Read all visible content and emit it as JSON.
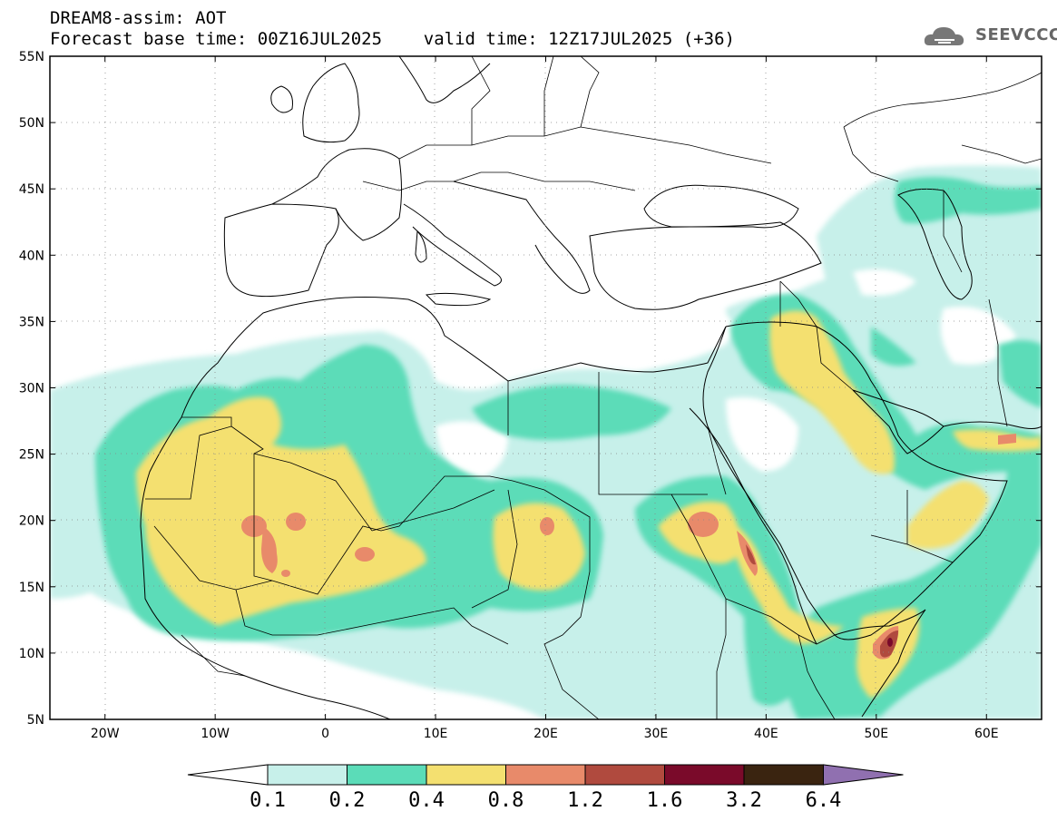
{
  "header": {
    "line1": "DREAM8-assim: AOT",
    "line2": "Forecast base time: 00Z16JUL2025    valid time: 12Z17JUL2025 (+36)"
  },
  "logo": {
    "text": "SEEVCCC",
    "icon": "cloud-icon"
  },
  "map": {
    "lon_range": [
      -25,
      65
    ],
    "lat_range": [
      5,
      55
    ],
    "lat_ticks": [
      "55N",
      "50N",
      "45N",
      "40N",
      "35N",
      "30N",
      "25N",
      "20N",
      "15N",
      "10N",
      "5N"
    ],
    "lon_ticks": [
      "20W",
      "10W",
      "0",
      "10E",
      "20E",
      "30E",
      "40E",
      "50E",
      "60E"
    ]
  },
  "colorbar": {
    "labels": [
      "0.1",
      "0.2",
      "0.4",
      "0.8",
      "1.2",
      "1.6",
      "3.2",
      "6.4"
    ],
    "colors": [
      "#ffffff",
      "#c7f0ea",
      "#5bdcb8",
      "#f4e070",
      "#e88a6a",
      "#b04a3e",
      "#7a0a2a",
      "#3a2410",
      "#9070b0"
    ]
  },
  "colors": {
    "c01": "#c7f0ea",
    "c02": "#5bdcb8",
    "c04": "#f4e070",
    "c08": "#e88a6a",
    "c12": "#b04a3e",
    "c16": "#7a0a2a"
  }
}
